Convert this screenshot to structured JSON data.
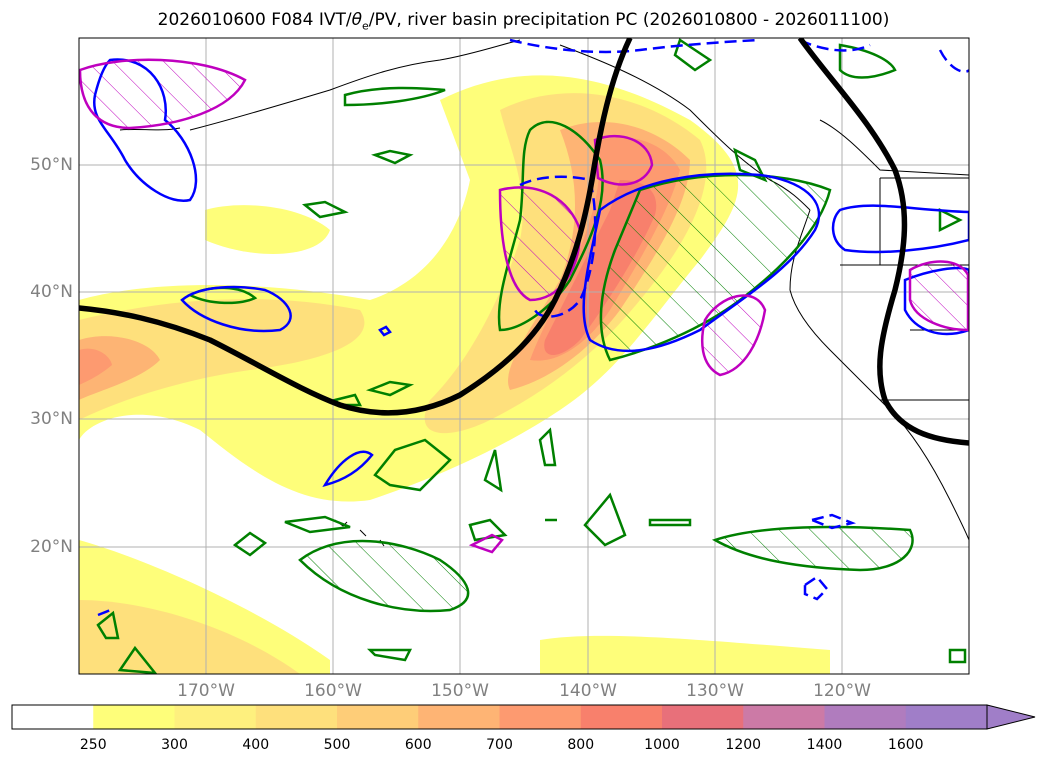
{
  "title": {
    "prefix": "2026010600 F084 IVT/",
    "theta": "θ",
    "theta_sub": "e",
    "suffix": "/PV, river basin precipitation PC (2026010800 - 2026011100)"
  },
  "lat_labels": [
    "50°N",
    "40°N",
    "30°N",
    "20°N"
  ],
  "lon_labels": [
    "170°W",
    "160°W",
    "150°W",
    "140°W",
    "130°W",
    "120°W"
  ],
  "colorbar": {
    "ticks": [
      "250",
      "300",
      "400",
      "500",
      "600",
      "700",
      "800",
      "1000",
      "1200",
      "1400",
      "1600"
    ],
    "colors": [
      "#ffffff",
      "#fefe7a",
      "#fef07e",
      "#fee07c",
      "#fecd78",
      "#feb474",
      "#fd9a70",
      "#f8806c",
      "#e8707a",
      "#cc7aa6",
      "#b07cbe",
      "#a07ec8"
    ]
  },
  "colors": {
    "jet_contour": "#000000",
    "green_contour": "#008000",
    "blue_contour": "#0000ff",
    "magenta_contour": "#bf00bf",
    "coastline": "#000000",
    "gridline": "#b0b0b0"
  }
}
